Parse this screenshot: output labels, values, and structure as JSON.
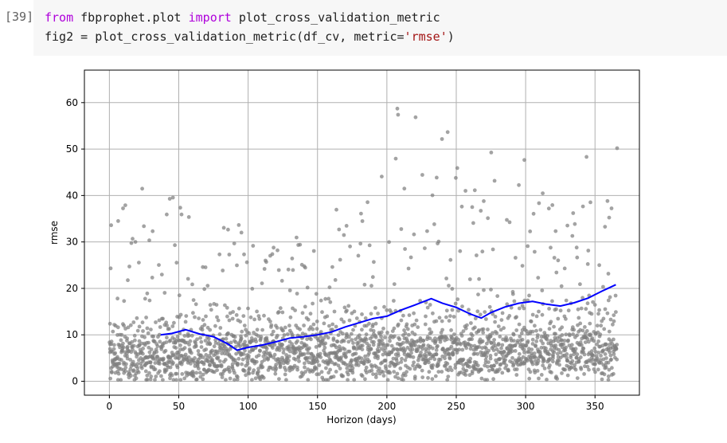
{
  "cell": {
    "execution_count": "[39]",
    "code_line1": {
      "kw1": "from",
      "mod": " fbprophet.plot ",
      "kw2": "import",
      "fn": " plot_cross_validation_metric"
    },
    "code_line2": {
      "prefix": "fig2 = plot_cross_validation_metric(df_cv, metric=",
      "str": "'rmse'",
      "suffix": ")"
    }
  },
  "colors": {
    "scatter": "#808080",
    "line": "#0000ff",
    "grid": "#b0b0b0"
  },
  "chart_data": {
    "type": "scatter",
    "title": "",
    "xlabel": "Horizon (days)",
    "ylabel": "rmse",
    "xlim": [
      -18,
      382
    ],
    "ylim": [
      -3,
      67
    ],
    "xticks": [
      0,
      50,
      100,
      150,
      200,
      250,
      300,
      350
    ],
    "yticks": [
      0,
      10,
      20,
      30,
      40,
      50,
      60
    ],
    "grid": true,
    "series": [
      {
        "name": "rmse per fold (scatter, approx. 3000 points)",
        "style": "grey dots",
        "x_range": [
          0,
          365
        ],
        "approx_bands": {
          "dense_low_band": [
            0,
            10
          ],
          "mid_band": [
            10,
            22
          ],
          "upper_band": [
            20,
            63
          ]
        }
      },
      {
        "name": "rolling mean rmse",
        "style": "blue line",
        "x": [
          37,
          45,
          55,
          65,
          75,
          85,
          92,
          100,
          110,
          120,
          130,
          140,
          150,
          160,
          170,
          180,
          190,
          200,
          210,
          220,
          232,
          240,
          250,
          260,
          268,
          275,
          285,
          295,
          305,
          315,
          325,
          335,
          345,
          355,
          365
        ],
        "y": [
          10.0,
          10.3,
          11.1,
          10.2,
          9.6,
          8.1,
          6.7,
          7.3,
          7.8,
          8.5,
          9.3,
          9.6,
          10.0,
          10.6,
          11.7,
          12.6,
          13.5,
          14.0,
          15.3,
          16.4,
          17.8,
          16.8,
          15.9,
          14.5,
          13.6,
          14.8,
          16.0,
          16.8,
          17.2,
          16.6,
          16.2,
          16.9,
          17.9,
          19.4,
          20.8
        ]
      }
    ]
  }
}
